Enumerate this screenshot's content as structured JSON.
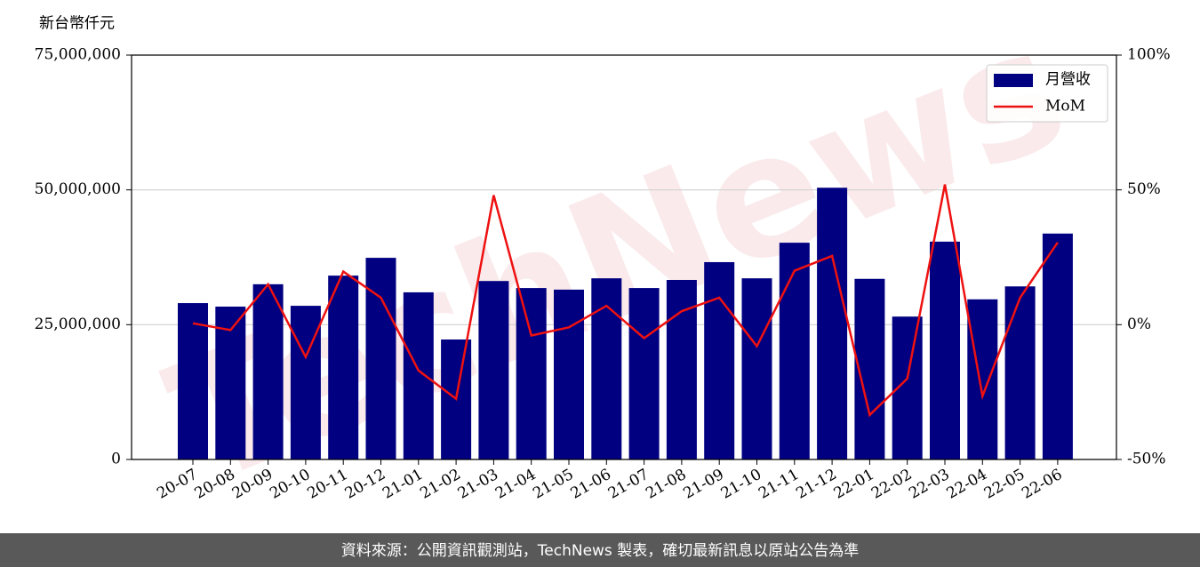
{
  "chart_data": {
    "type": "bar-line",
    "y_label": "新台幣仟元",
    "watermark": "TechNews",
    "source": "資料來源：公開資訊觀測站，TechNews 製表，確切最新訊息以原站公告為準",
    "categories": [
      "20-07",
      "20-08",
      "20-09",
      "20-10",
      "20-11",
      "20-12",
      "21-01",
      "21-02",
      "21-03",
      "21-04",
      "21-05",
      "21-06",
      "21-07",
      "21-08",
      "21-09",
      "21-10",
      "21-11",
      "21-12",
      "22-01",
      "22-02",
      "22-03",
      "22-04",
      "22-05",
      "22-06"
    ],
    "series": [
      {
        "name": "月營收",
        "type": "bar",
        "color": "#000080",
        "values": [
          29000000,
          28350000,
          32500000,
          28500000,
          34100000,
          37400000,
          31000000,
          22250000,
          33100000,
          31800000,
          31500000,
          33600000,
          31800000,
          33300000,
          36600000,
          33600000,
          40200000,
          50400000,
          33500000,
          26500000,
          40400000,
          29700000,
          32100000,
          41900000
        ]
      },
      {
        "name": "MoM",
        "type": "line",
        "axis": "y2",
        "color": "#ee1111",
        "values": [
          0.5,
          -2,
          15,
          -12,
          19.7,
          10,
          -17,
          -27.5,
          48,
          -4,
          -1,
          7,
          -5,
          5,
          10,
          -8,
          20,
          25.5,
          -33.5,
          -20,
          52,
          -26.5,
          10,
          30.5
        ]
      }
    ],
    "ylim": [
      0,
      75000000
    ],
    "yticks": [
      0,
      {
        "value": 25000000,
        "label": "25,000,000"
      },
      {
        "value": 50000000,
        "label": "50,000,000"
      },
      {
        "value": 75000000,
        "label": "75,000,000"
      }
    ],
    "y2lim": [
      -50,
      100
    ],
    "y2ticks": [
      {
        "value": -50,
        "label": "-50%"
      },
      {
        "value": 0,
        "label": "0%"
      },
      {
        "value": 50,
        "label": "50%"
      },
      {
        "value": 100,
        "label": "100%"
      }
    ],
    "grid": true,
    "legend": "upper right"
  }
}
